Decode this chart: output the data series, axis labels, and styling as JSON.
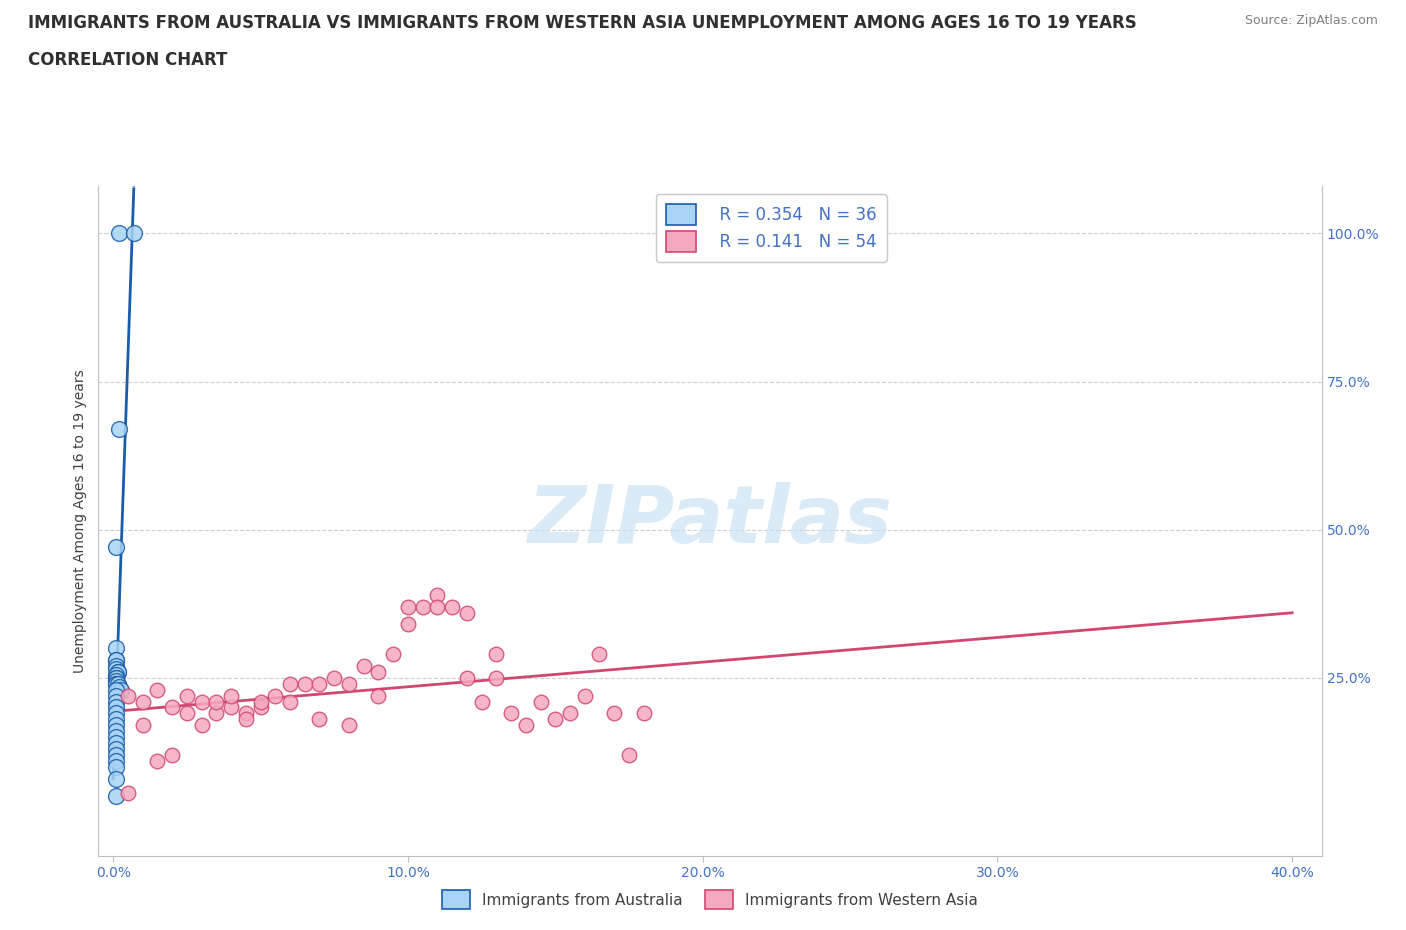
{
  "title_line1": "IMMIGRANTS FROM AUSTRALIA VS IMMIGRANTS FROM WESTERN ASIA UNEMPLOYMENT AMONG AGES 16 TO 19 YEARS",
  "title_line2": "CORRELATION CHART",
  "source": "Source: ZipAtlas.com",
  "ylabel": "Unemployment Among Ages 16 to 19 years",
  "watermark": "ZIPatlas",
  "legend_r1": "R = 0.354",
  "legend_n1": "N = 36",
  "legend_r2": "R = 0.141",
  "legend_n2": "N = 54",
  "color_australia": "#A8D4F5",
  "color_western_asia": "#F5A8C0",
  "line_color_australia": "#1A5CA8",
  "line_color_western_asia": "#D04870",
  "aus_x": [
    0.2,
    0.7,
    0.2,
    0.1,
    0.1,
    0.1,
    0.1,
    0.1,
    0.1,
    0.15,
    0.15,
    0.1,
    0.1,
    0.1,
    0.1,
    0.1,
    0.1,
    0.15,
    0.2,
    0.25,
    0.1,
    0.1,
    0.1,
    0.1,
    0.1,
    0.1,
    0.1,
    0.1,
    0.1,
    0.1,
    0.1,
    0.1,
    0.1,
    0.1,
    0.1,
    0.1
  ],
  "aus_y": [
    100.0,
    100.0,
    67.0,
    47.0,
    30.0,
    28.0,
    28.0,
    27.0,
    26.5,
    26.0,
    26.0,
    25.5,
    25.0,
    25.0,
    24.5,
    24.0,
    24.0,
    24.0,
    23.5,
    23.0,
    23.0,
    22.0,
    21.0,
    20.0,
    19.0,
    18.0,
    17.0,
    16.0,
    15.0,
    14.0,
    13.0,
    12.0,
    11.0,
    10.0,
    8.0,
    5.0
  ],
  "wa_x": [
    0.5,
    1.0,
    1.5,
    2.0,
    2.5,
    3.0,
    3.5,
    4.0,
    4.5,
    5.0,
    5.5,
    6.0,
    6.5,
    7.0,
    7.5,
    8.0,
    8.5,
    9.0,
    9.5,
    10.0,
    10.5,
    11.0,
    11.5,
    12.0,
    12.5,
    13.0,
    13.5,
    14.0,
    14.5,
    15.0,
    15.5,
    16.0,
    16.5,
    17.0,
    17.5,
    18.0,
    0.5,
    1.0,
    1.5,
    2.0,
    2.5,
    3.0,
    3.5,
    4.0,
    4.5,
    5.0,
    6.0,
    7.0,
    8.0,
    9.0,
    10.0,
    11.0,
    12.0,
    13.0
  ],
  "wa_y": [
    22.0,
    21.0,
    23.0,
    20.0,
    22.0,
    21.0,
    19.0,
    20.0,
    19.0,
    20.0,
    22.0,
    21.0,
    24.0,
    24.0,
    25.0,
    24.0,
    27.0,
    26.0,
    29.0,
    34.0,
    37.0,
    39.0,
    37.0,
    36.0,
    21.0,
    25.0,
    19.0,
    17.0,
    21.0,
    18.0,
    19.0,
    22.0,
    29.0,
    19.0,
    12.0,
    19.0,
    5.5,
    17.0,
    11.0,
    12.0,
    19.0,
    17.0,
    21.0,
    22.0,
    18.0,
    21.0,
    24.0,
    18.0,
    17.0,
    22.0,
    37.0,
    37.0,
    25.0,
    29.0
  ],
  "xmin": -0.5,
  "xmax": 41.0,
  "ymin": -5.0,
  "ymax": 108.0,
  "xtick_vals": [
    0.0,
    10.0,
    20.0,
    30.0,
    40.0
  ],
  "xtick_labels": [
    "0.0%",
    "10.0%",
    "20.0%",
    "30.0%",
    "40.0%"
  ],
  "ytick_vals": [
    100.0,
    75.0,
    50.0,
    25.0
  ],
  "ytick_labels": [
    "100.0%",
    "75.0%",
    "50.0%",
    "25.0%"
  ],
  "grid_color": "#D0D0D0",
  "spine_color": "#C0C0C0",
  "tick_color": "#4472C4",
  "title_fontsize": 12,
  "source_fontsize": 9,
  "axis_fontsize": 10,
  "legend_fontsize": 12
}
